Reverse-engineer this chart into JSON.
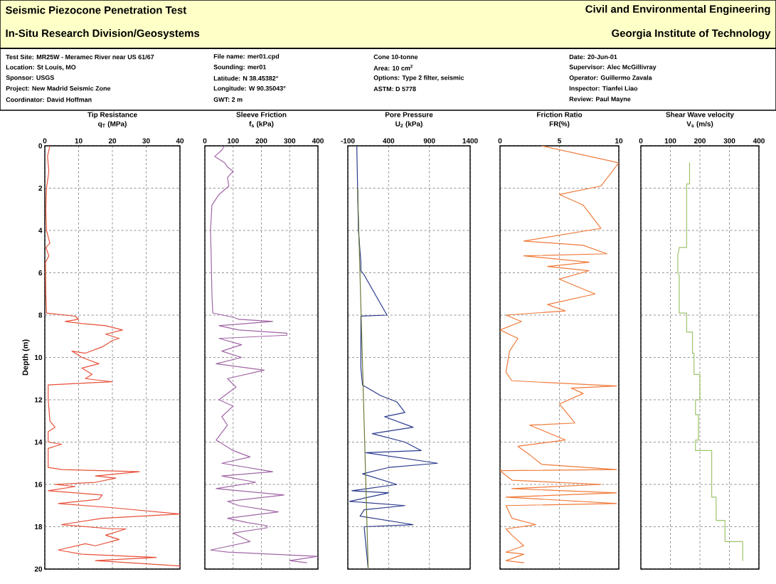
{
  "chart_data": [
    {
      "type": "other",
      "title": "Seismic Piezocone Penetration Test",
      "subtitle": "In-Situ Research Division/Geosystems",
      "annotations": [
        "Civil and Environmental Engineering",
        "Georgia Institute of Technology",
        "Test Site: MR25W - Meramec River near US 61/67",
        "Location: St Louis, MO",
        "Sponsor: USGS",
        "Project: New Madrid Seismic Zone",
        "Coordinator: David Hoffman",
        "File name: mer01.cpd",
        "Sounding: mer01",
        "Latitude: N 38.45382°",
        "Longitude: W 90.35043°",
        "GWT: 2 m",
        "Cone 10-tonne",
        "Area: 10 cm$^{2}$",
        "Options: Type 2 filter, seismic",
        "ASTM: D 5778",
        "Date: 20-Jun-01",
        "Supervisor: Alec McGillivray",
        "Operator: Guillermo Zavala",
        "Inspector: Tianfei Liao",
        "Review: Paul Mayne"
      ]
    },
    {
      "type": "line",
      "title": "Tip Resistance",
      "xlabel": "q$_{T}$ (MPa)",
      "ylabel": "Depth (m)",
      "xlim": [
        0,
        40
      ],
      "xticks": [
        0,
        10,
        20,
        30,
        40
      ],
      "ylim": [
        20,
        0
      ],
      "yticks": [
        0,
        2,
        4,
        6,
        8,
        10,
        12,
        14,
        16,
        18,
        20
      ],
      "grid": true,
      "series": [
        {
          "color": "#e8503a",
          "x": [
            1.5,
            0.8,
            1.2,
            0.5,
            0.3,
            0.5,
            1.5,
            0.3,
            1.2,
            0.2,
            0.3,
            0.5,
            9,
            10,
            6,
            11,
            18,
            23,
            18,
            22,
            20,
            17,
            12,
            8,
            11,
            16,
            11,
            14,
            12,
            20,
            1,
            1,
            1.5,
            3,
            1,
            1,
            5,
            1,
            1,
            5,
            28,
            15,
            21,
            15,
            3,
            9,
            1,
            17,
            16,
            4,
            20,
            40,
            17,
            5,
            20,
            24,
            18,
            22,
            15,
            12,
            4,
            11,
            33,
            15,
            40,
            40
          ],
          "values": [
            0,
            0.5,
            1.2,
            2,
            3,
            4,
            4.6,
            4.8,
            5.2,
            5.5,
            7,
            7.9,
            8.05,
            8.2,
            8.3,
            8.4,
            8.5,
            8.7,
            8.9,
            9.1,
            9.2,
            9.5,
            9.8,
            9.7,
            10,
            10.3,
            10.5,
            10.8,
            11,
            11.15,
            11.3,
            12,
            13,
            13.3,
            13.5,
            14,
            14.1,
            14.3,
            15.2,
            15.3,
            15.4,
            15.6,
            15.7,
            15.9,
            16,
            16.1,
            16.3,
            16.5,
            16.7,
            16.9,
            17.1,
            17.4,
            17.6,
            17.9,
            18.1,
            18.1,
            18.4,
            18.6,
            18.9,
            18.8,
            19.1,
            19.3,
            19.45,
            19.6,
            19.85,
            19.95
          ]
        }
      ]
    },
    {
      "type": "line",
      "title": "Sleeve Friction",
      "xlabel": "f$_{s}$ (kPa)",
      "xlim": [
        0,
        400
      ],
      "xticks": [
        0,
        100,
        200,
        300,
        400
      ],
      "ylim": [
        20,
        0
      ],
      "yticks": [
        0,
        2,
        4,
        6,
        8,
        10,
        12,
        14,
        16,
        18,
        20
      ],
      "grid": true,
      "tick_labels": "x",
      "series": [
        {
          "color": "#a066a6",
          "x": [
            70,
            60,
            35,
            70,
            80,
            100,
            80,
            85,
            50,
            25,
            20,
            22,
            25,
            28,
            100,
            120,
            240,
            50,
            120,
            290,
            290,
            50,
            130,
            60,
            130,
            40,
            210,
            80,
            110,
            50,
            100,
            60,
            80,
            40,
            100,
            160,
            60,
            240,
            60,
            180,
            40,
            280,
            80,
            120,
            260,
            80,
            150,
            220,
            220,
            100,
            160,
            20,
            80,
            400,
            300,
            360
          ],
          "values": [
            0,
            0.2,
            0.5,
            0.8,
            1.0,
            1.2,
            1.5,
            1.9,
            2.3,
            2.8,
            4,
            5,
            7,
            7.9,
            8.1,
            8.2,
            8.3,
            8.5,
            8.7,
            8.85,
            8.95,
            9.1,
            9.4,
            9.7,
            10,
            10.3,
            10.6,
            11.0,
            11.4,
            12,
            12.3,
            12.8,
            13.2,
            13.9,
            14.4,
            14.7,
            15,
            15.4,
            15.6,
            15.9,
            16.2,
            16.5,
            16.8,
            17,
            17.3,
            17.6,
            17.8,
            17.95,
            18.05,
            18.3,
            18.7,
            19.1,
            19.2,
            19.4,
            19.6,
            19.7
          ]
        }
      ]
    },
    {
      "type": "line",
      "title": "Pore Pressure",
      "xlabel": "U$_{2}$ (kPa)",
      "xlim": [
        -100,
        1400
      ],
      "xticks": [
        -100,
        400,
        900,
        1400
      ],
      "ylim": [
        20,
        0
      ],
      "yticks": [
        0,
        2,
        4,
        6,
        8,
        10,
        12,
        14,
        16,
        18,
        20
      ],
      "grid": true,
      "tick_labels": "x",
      "series": [
        {
          "color": "#2a3a8c",
          "x": [
            10,
            20,
            30,
            60,
            60,
            100,
            380,
            60,
            60,
            80,
            300,
            500,
            600,
            350,
            700,
            200,
            600,
            800,
            120,
            1000,
            400,
            80,
            500,
            -50,
            400,
            -80,
            600,
            100,
            50,
            700,
            100,
            150
          ],
          "values": [
            0,
            2,
            4,
            5.5,
            5.9,
            6.1,
            8,
            8.05,
            10.5,
            11.3,
            11.8,
            12.1,
            12.6,
            12.8,
            13.3,
            13.6,
            14,
            14.4,
            14.5,
            15.0,
            15.2,
            15.5,
            16.0,
            16.3,
            16.4,
            16.8,
            17.0,
            17.2,
            17.5,
            17.9,
            18,
            20
          ]
        },
        {
          "color": "#6b7a3a",
          "x": [
            20,
            150
          ],
          "values": [
            2,
            20
          ]
        }
      ]
    },
    {
      "type": "line",
      "title": "Friction Ratio",
      "xlabel": "FR(%)",
      "xlim": [
        0,
        10
      ],
      "xticks": [
        0,
        5,
        10
      ],
      "ylim": [
        20,
        0
      ],
      "yticks": [
        0,
        2,
        4,
        6,
        8,
        10,
        12,
        14,
        16,
        18,
        20
      ],
      "grid": true,
      "tick_labels": "x",
      "series": [
        {
          "color": "#f07a3a",
          "x": [
            3.5,
            10,
            8.5,
            5,
            7,
            8.5,
            2,
            7,
            9,
            2,
            7.5,
            4,
            7.5,
            5,
            8,
            4,
            5.5,
            0.5,
            1.8,
            0,
            1.5,
            0.8,
            0.5,
            1,
            9.8,
            6,
            7,
            5,
            6.3,
            2.5,
            5.5,
            1.5,
            2.5,
            3.5,
            9.8,
            0,
            1,
            8.5,
            1,
            9.8,
            0.5,
            9.8,
            0.5,
            1,
            3,
            0.5,
            1,
            2,
            0.5,
            2,
            0.5,
            2
          ],
          "values": [
            0,
            0.8,
            1.9,
            2.3,
            2.8,
            3.9,
            4.5,
            4.7,
            5.1,
            5.2,
            5.5,
            5.7,
            5.9,
            6.3,
            7.0,
            7.5,
            7.8,
            8.0,
            8.3,
            8.7,
            9.1,
            9.7,
            10.7,
            11.1,
            11.35,
            11.45,
            11.7,
            12.2,
            13.1,
            13.2,
            13.9,
            14.2,
            14.6,
            15.05,
            15.3,
            15.35,
            15.8,
            16.0,
            16.2,
            16.4,
            16.6,
            16.9,
            17.0,
            17.6,
            17.9,
            18.1,
            18.4,
            18.9,
            19.2,
            19.3,
            19.6,
            19.7
          ]
        }
      ]
    },
    {
      "type": "line",
      "title": "Shear Wave velocity",
      "xlabel": "V$_{s}$ (m/s)",
      "xlim": [
        0,
        400
      ],
      "xticks": [
        0,
        100,
        200,
        300,
        400
      ],
      "ylim": [
        20,
        0
      ],
      "yticks": [
        0,
        2,
        4,
        6,
        8,
        10,
        12,
        14,
        16,
        18,
        20
      ],
      "grid": true,
      "tick_labels": "x",
      "series": [
        {
          "color": "#9cc46a",
          "x": [
            165,
            165,
            155,
            155,
            130,
            125,
            125,
            130,
            130,
            155,
            155,
            175,
            175,
            180,
            180,
            200,
            200,
            185,
            185,
            195,
            195,
            185,
            185,
            240,
            240,
            255,
            255,
            285,
            285,
            345,
            345
          ],
          "values": [
            0.8,
            1.8,
            1.8,
            4.8,
            4.8,
            5.2,
            6.0,
            6.1,
            7.9,
            7.9,
            8.8,
            8.8,
            9.8,
            9.8,
            10.8,
            10.8,
            12.0,
            12.0,
            12.7,
            12.7,
            13.9,
            13.9,
            14.4,
            14.4,
            16.6,
            16.6,
            17.7,
            17.7,
            18.7,
            18.7,
            19.6
          ]
        }
      ]
    }
  ]
}
